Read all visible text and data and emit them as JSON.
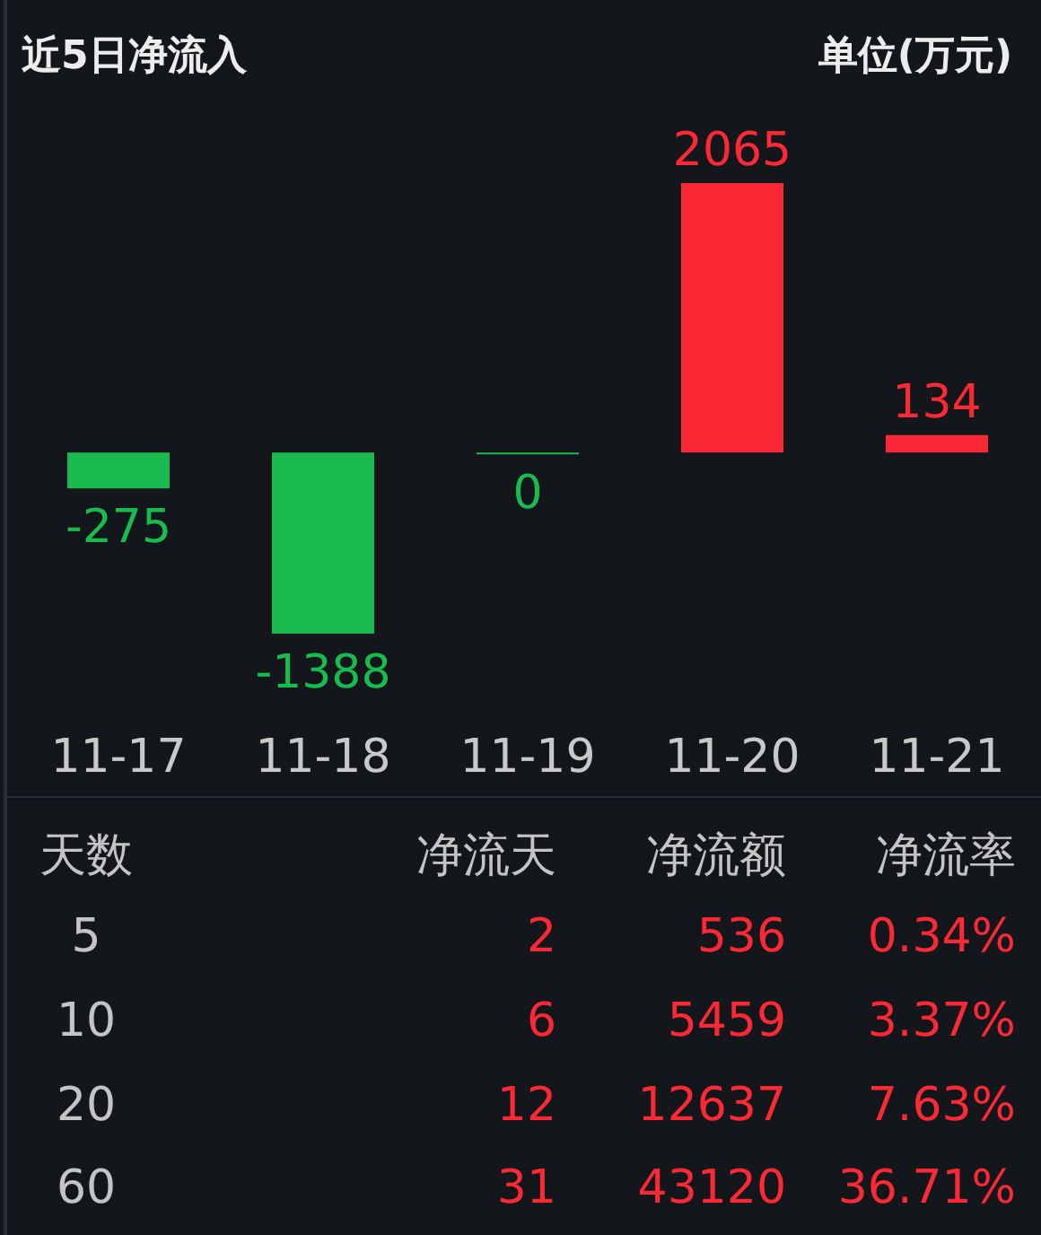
{
  "chart_data": [
    {
      "type": "bar",
      "title": "近5日净流入",
      "subtitle": "单位(万元)",
      "categories": [
        "11-17",
        "11-18",
        "11-19",
        "11-20",
        "11-21"
      ],
      "values": [
        -275,
        -1388,
        0,
        2065,
        134
      ],
      "colors": [
        "#19bb4f",
        "#19bb4f",
        "#19bb4f",
        "#fb2935",
        "#fb2935"
      ],
      "data_labels": true,
      "tick_labels": "x"
    },
    {
      "type": "other",
      "annotations": [
        "天数",
        "净流天",
        "净流额",
        "净流率",
        "5",
        "2",
        "536",
        "0.34%",
        "10",
        "6",
        "5459",
        "3.37%",
        "20",
        "12",
        "12637",
        "7.63%",
        "60",
        "31",
        "43120",
        "36.71%"
      ]
    }
  ]
}
